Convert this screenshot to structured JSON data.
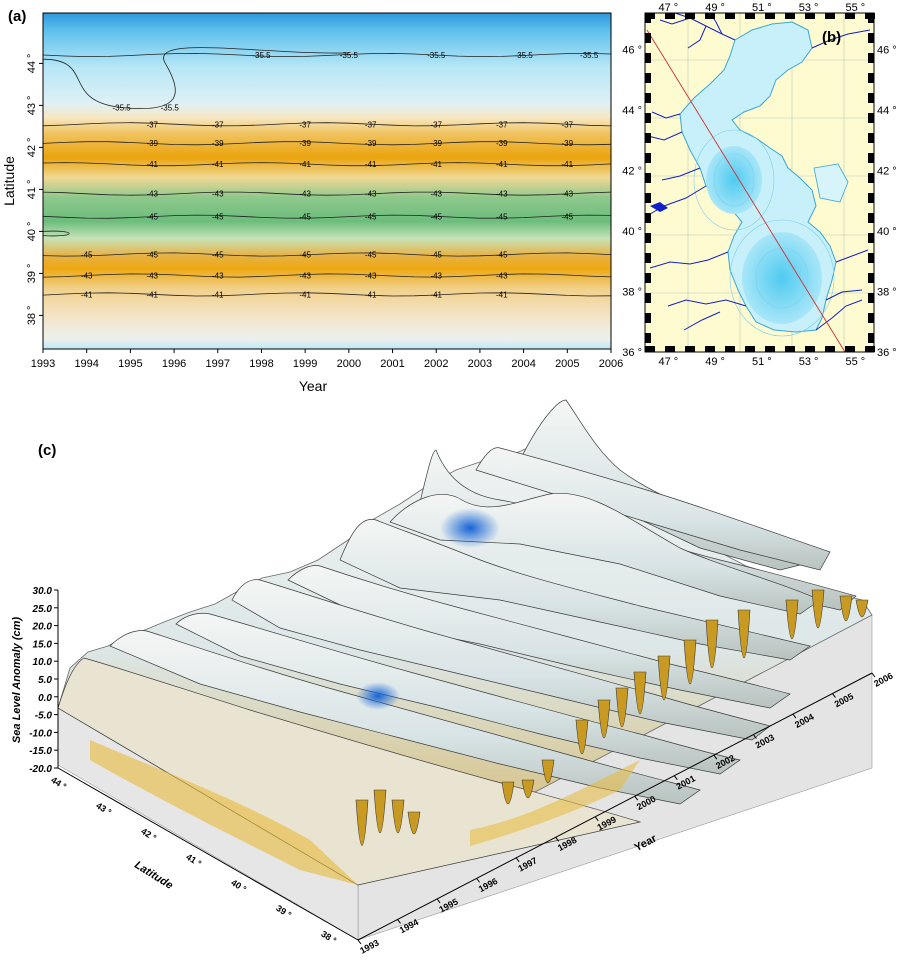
{
  "chart_data": [
    {
      "panel_label": "(a)",
      "type": "contour",
      "xlabel": "Year",
      "ylabel": "Latitude",
      "x_ticks": [
        "1993",
        "1994",
        "1995",
        "1996",
        "1997",
        "1998",
        "1999",
        "2000",
        "2001",
        "2002",
        "2003",
        "2004",
        "2005",
        "2006"
      ],
      "y_ticks": [
        "38 °",
        "39 °",
        "40 °",
        "41 °",
        "42 °",
        "43 °",
        "44 °"
      ],
      "xlim": [
        1993,
        2006
      ],
      "ylim": [
        37.2,
        45.2
      ],
      "contour_levels": [
        -45,
        -43,
        -41,
        -39,
        -37,
        -35.5
      ],
      "contour_lines": [
        {
          "level": "-35.5",
          "lat": 44.2,
          "labels_at": [
            1998,
            2000,
            2002,
            2004,
            2005.5
          ]
        },
        {
          "level": "-35.5",
          "lat": 42.95,
          "labels_at": [
            1994.8,
            1995.9
          ]
        },
        {
          "level": "-37",
          "lat": 42.55,
          "labels_at": [
            1995.5,
            1997,
            1999,
            2000.5,
            2002,
            2003.5,
            2005
          ]
        },
        {
          "level": "-39",
          "lat": 42.1,
          "labels_at": [
            1995.5,
            1997,
            1999,
            2000.5,
            2002,
            2003.5,
            2005
          ]
        },
        {
          "level": "-41",
          "lat": 41.6,
          "labels_at": [
            1995.5,
            1997,
            1999,
            2000.5,
            2002,
            2003.5,
            2005
          ]
        },
        {
          "level": "-43",
          "lat": 40.9,
          "labels_at": [
            1995.5,
            1997,
            1999,
            2000.5,
            2002,
            2003.5,
            2005
          ]
        },
        {
          "level": "-45",
          "lat": 40.35,
          "labels_at": [
            1995.5,
            1997,
            1999,
            2000.5,
            2002,
            2003.5,
            2005
          ]
        },
        {
          "level": "-45",
          "lat": 39.45,
          "labels_at": [
            1994,
            1995.5,
            1997,
            1999,
            2000.5,
            2002,
            2003.5
          ]
        },
        {
          "level": "-43",
          "lat": 38.95,
          "labels_at": [
            1994,
            1995.5,
            1997,
            1999,
            2000.5,
            2002,
            2003.5
          ]
        },
        {
          "level": "-41",
          "lat": 38.5,
          "labels_at": [
            1994,
            1995.5,
            1997,
            1999,
            2000.5,
            2002,
            2003.5
          ]
        }
      ]
    },
    {
      "panel_label": "(b)",
      "type": "map",
      "lon_ticks": [
        "47 °",
        "49 °",
        "51 °",
        "53 °",
        "55 °"
      ],
      "lat_ticks": [
        "36 °",
        "38 °",
        "40 °",
        "42 °",
        "44 °",
        "46 °"
      ],
      "lon_range": [
        46.0,
        55.8
      ],
      "lat_range": [
        36.0,
        47.2
      ],
      "land_color": "#fffbd0",
      "sea_color": "#c8f0fa",
      "deep_color": "#6ad6f2",
      "river_color": "#1020c8",
      "track_color": "#d03030"
    },
    {
      "panel_label": "(c)",
      "type": "surface3d",
      "zlabel": "Sea Level Anomaly (cm)",
      "z_ticks": [
        "30.0",
        "25.0",
        "20.0",
        "15.0",
        "10.0",
        "5.0",
        "0.0",
        "-5.0",
        "-10.0",
        "-15.0",
        "-20.0"
      ],
      "year_label": "Year",
      "year_ticks": [
        "1993",
        "1994",
        "1995",
        "1996",
        "1997",
        "1998",
        "1999",
        "2000",
        "2001",
        "2002",
        "2003",
        "2004",
        "2005",
        "2006"
      ],
      "latitude_label": "Latitude",
      "latitude_ticks": [
        "44 °",
        "43 °",
        "42 °",
        "41 °",
        "40 °",
        "39 °",
        "38 °"
      ],
      "zlim": [
        -20,
        30
      ]
    }
  ]
}
